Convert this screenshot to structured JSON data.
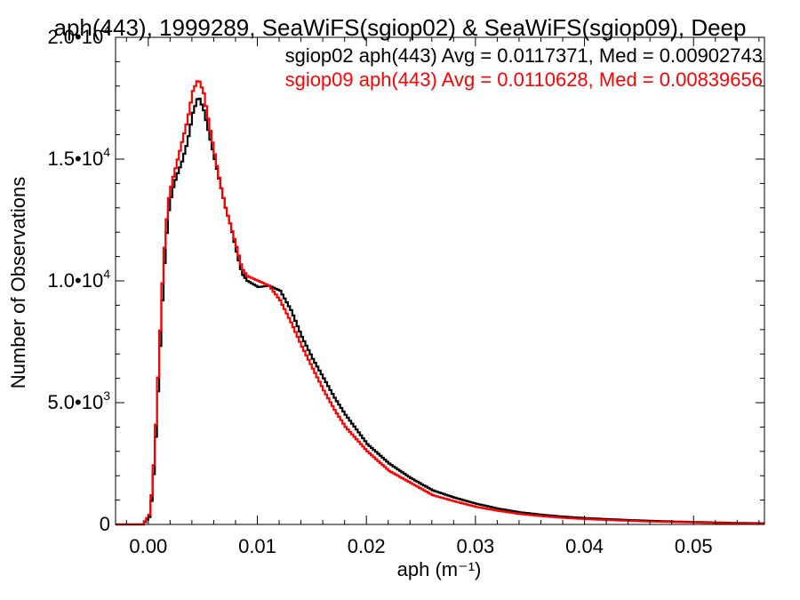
{
  "chart_data": {
    "type": "line",
    "title": "aph(443), 1999289, SeaWiFS(sgiop02) & SeaWiFS(sgiop09), Deep",
    "xlabel": "aph (m⁻¹)",
    "ylabel": "Number of Observations",
    "xlim": [
      -0.003,
      0.0565
    ],
    "ylim": [
      0,
      20000
    ],
    "x_ticks": [
      0.0,
      0.01,
      0.02,
      0.03,
      0.04,
      0.05
    ],
    "x_tick_labels": [
      "0.00",
      "0.01",
      "0.02",
      "0.03",
      "0.04",
      "0.05"
    ],
    "y_ticks": [
      0,
      5000,
      10000,
      15000,
      20000
    ],
    "y_tick_labels": [
      {
        "mant": "0",
        "exp": ""
      },
      {
        "mant": "5.0•10",
        "exp": "3"
      },
      {
        "mant": "1.0•10",
        "exp": "4"
      },
      {
        "mant": "1.5•10",
        "exp": "4"
      },
      {
        "mant": "2.0•10",
        "exp": "4"
      }
    ],
    "grid": false,
    "legend_position": "top-right",
    "series": [
      {
        "name": "sgiop02 aph(443) Avg = 0.0117371, Med = 0.00902743",
        "color": "#000000",
        "points": [
          [
            -0.0006,
            0
          ],
          [
            0.0,
            300
          ],
          [
            0.0003,
            1300
          ],
          [
            0.0006,
            3600
          ],
          [
            0.0009,
            6400
          ],
          [
            0.0012,
            9200
          ],
          [
            0.0015,
            11500
          ],
          [
            0.0018,
            12900
          ],
          [
            0.0021,
            13700
          ],
          [
            0.0025,
            14300
          ],
          [
            0.003,
            14900
          ],
          [
            0.0035,
            15700
          ],
          [
            0.004,
            16900
          ],
          [
            0.0045,
            17600
          ],
          [
            0.005,
            17000
          ],
          [
            0.0055,
            16000
          ],
          [
            0.006,
            15000
          ],
          [
            0.0065,
            14000
          ],
          [
            0.007,
            13000
          ],
          [
            0.0075,
            12200
          ],
          [
            0.008,
            11200
          ],
          [
            0.0085,
            10300
          ],
          [
            0.009,
            10000
          ],
          [
            0.01,
            9750
          ],
          [
            0.011,
            9800
          ],
          [
            0.012,
            9600
          ],
          [
            0.013,
            8800
          ],
          [
            0.014,
            7700
          ],
          [
            0.015,
            6800
          ],
          [
            0.016,
            6000
          ],
          [
            0.017,
            5200
          ],
          [
            0.018,
            4500
          ],
          [
            0.019,
            3900
          ],
          [
            0.02,
            3300
          ],
          [
            0.022,
            2500
          ],
          [
            0.024,
            1900
          ],
          [
            0.026,
            1400
          ],
          [
            0.028,
            1100
          ],
          [
            0.03,
            850
          ],
          [
            0.032,
            650
          ],
          [
            0.034,
            500
          ],
          [
            0.036,
            400
          ],
          [
            0.038,
            320
          ],
          [
            0.04,
            260
          ],
          [
            0.042,
            220
          ],
          [
            0.044,
            180
          ],
          [
            0.046,
            150
          ],
          [
            0.048,
            120
          ],
          [
            0.05,
            100
          ],
          [
            0.052,
            80
          ],
          [
            0.054,
            60
          ],
          [
            0.0565,
            50
          ]
        ]
      },
      {
        "name": "sgiop09 aph(443) Avg = 0.0110628, Med = 0.00839656",
        "color": "#ff0000",
        "points": [
          [
            -0.0006,
            0
          ],
          [
            0.0,
            400
          ],
          [
            0.0003,
            1600
          ],
          [
            0.0006,
            4100
          ],
          [
            0.0009,
            7000
          ],
          [
            0.0012,
            9900
          ],
          [
            0.0015,
            12100
          ],
          [
            0.0018,
            13400
          ],
          [
            0.0021,
            14100
          ],
          [
            0.0025,
            14800
          ],
          [
            0.003,
            15700
          ],
          [
            0.0035,
            16600
          ],
          [
            0.004,
            17800
          ],
          [
            0.0045,
            18300
          ],
          [
            0.005,
            17700
          ],
          [
            0.0055,
            16400
          ],
          [
            0.006,
            15200
          ],
          [
            0.0065,
            14000
          ],
          [
            0.007,
            13000
          ],
          [
            0.0075,
            12200
          ],
          [
            0.008,
            11400
          ],
          [
            0.0085,
            10500
          ],
          [
            0.009,
            10200
          ],
          [
            0.01,
            10000
          ],
          [
            0.011,
            9800
          ],
          [
            0.012,
            9200
          ],
          [
            0.013,
            8300
          ],
          [
            0.014,
            7300
          ],
          [
            0.015,
            6400
          ],
          [
            0.016,
            5500
          ],
          [
            0.017,
            4700
          ],
          [
            0.018,
            4000
          ],
          [
            0.019,
            3500
          ],
          [
            0.02,
            3000
          ],
          [
            0.022,
            2200
          ],
          [
            0.024,
            1700
          ],
          [
            0.026,
            1200
          ],
          [
            0.028,
            950
          ],
          [
            0.03,
            720
          ],
          [
            0.032,
            560
          ],
          [
            0.034,
            430
          ],
          [
            0.036,
            340
          ],
          [
            0.038,
            270
          ],
          [
            0.04,
            220
          ],
          [
            0.042,
            180
          ],
          [
            0.044,
            150
          ],
          [
            0.046,
            120
          ],
          [
            0.048,
            100
          ],
          [
            0.05,
            80
          ],
          [
            0.052,
            60
          ],
          [
            0.054,
            45
          ],
          [
            0.0565,
            35
          ]
        ]
      }
    ]
  }
}
